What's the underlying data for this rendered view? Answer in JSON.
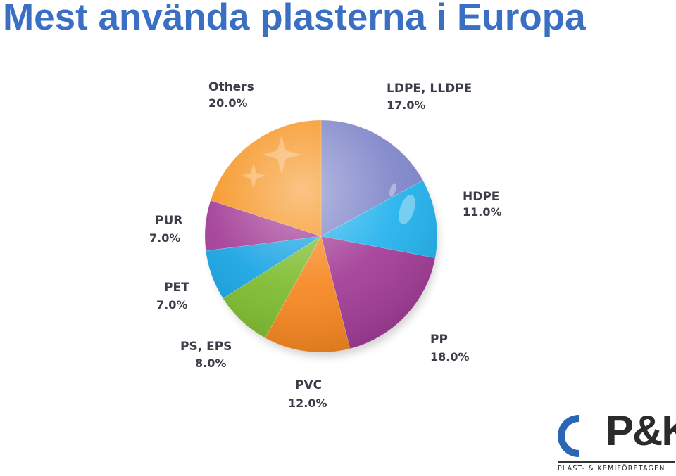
{
  "page": {
    "title": "Mest använda plasterna i Europa"
  },
  "chart_data": {
    "type": "pie",
    "slices": [
      {
        "label": "LDPE, LLDPE",
        "value": 17.0,
        "value_label": "17.0%",
        "color": "#7c82c8"
      },
      {
        "label": "HDPE",
        "value": 11.0,
        "value_label": "11.0%",
        "color": "#1fb1ec"
      },
      {
        "label": "PP",
        "value": 18.0,
        "value_label": "18.0%",
        "color": "#a13a95"
      },
      {
        "label": "PVC",
        "value": 12.0,
        "value_label": "12.0%",
        "color": "#f6861e"
      },
      {
        "label": "PS, EPS",
        "value": 8.0,
        "value_label": "8.0%",
        "color": "#7dbb2d"
      },
      {
        "label": "PET",
        "value": 7.0,
        "value_label": "7.0%",
        "color": "#15a3e3"
      },
      {
        "label": "PUR",
        "value": 7.0,
        "value_label": "7.0%",
        "color": "#a13a95"
      },
      {
        "label": "Others",
        "value": 20.0,
        "value_label": "20.0%",
        "color": "#f6931f"
      }
    ],
    "legend": "none"
  },
  "logo": {
    "wordmark": "P&K",
    "tagline": "PLAST- & KEMIFÖRETAGEN",
    "colors": {
      "blue": "#2b66b5",
      "yellow": "#f7c81e",
      "dark": "#2b2b2b"
    }
  }
}
